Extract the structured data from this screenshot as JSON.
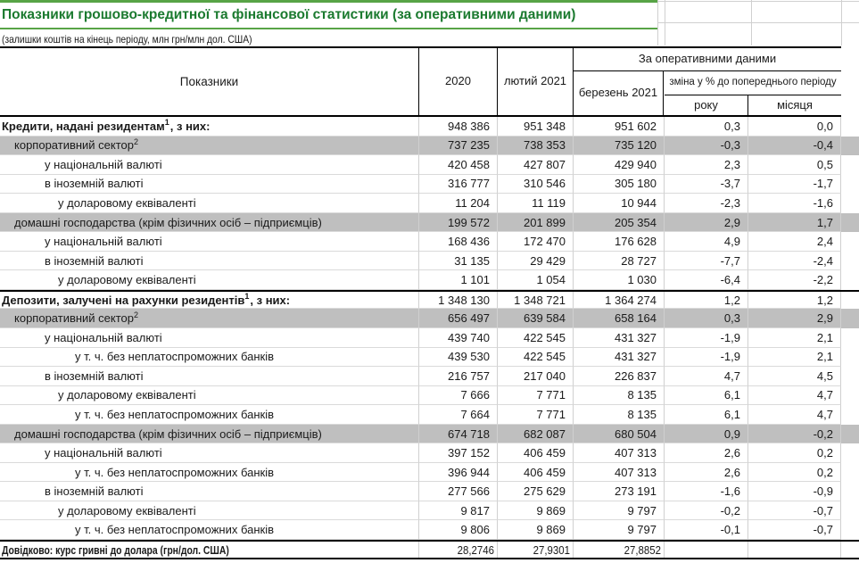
{
  "title": "Показники грошово-кредитної та фінансової статистики (за оперативними даними)",
  "subtitle": "(залишки коштів на кінець періоду, млн грн/млн дол. США)",
  "accent_colors": {
    "title_green": "#1b7a2f",
    "rule_green": "#58a446",
    "band_gray": "#bfbfbf"
  },
  "table": {
    "headers": {
      "indicators": "Показники",
      "col_2020": "2020",
      "col_feb": "лютий 2021",
      "operational_group": "За оперативними даними",
      "col_march": "березень 2021",
      "change_group": "зміна у % до попереднього періоду",
      "col_year": "року",
      "col_month": "місяця"
    },
    "rows": [
      {
        "label": "Кредити, надані резидентам",
        "sup": "1",
        "after": ", з них:",
        "indent": 0,
        "section": true,
        "shade": false,
        "rule_top": false,
        "values": [
          "948 386",
          "951 348",
          "951 602",
          "0,3",
          "0,0"
        ]
      },
      {
        "label": "корпоративний сектор",
        "sup": "2",
        "after": "",
        "indent": 1,
        "section": false,
        "shade": true,
        "rule_top": false,
        "values": [
          "737 235",
          "738 353",
          "735 120",
          "-0,3",
          "-0,4"
        ]
      },
      {
        "label": "у національній валюті",
        "sup": "",
        "after": "",
        "indent": 2,
        "section": false,
        "shade": false,
        "rule_top": false,
        "values": [
          "420 458",
          "427 807",
          "429 940",
          "2,3",
          "0,5"
        ]
      },
      {
        "label": "в іноземній валюті",
        "sup": "",
        "after": "",
        "indent": 2,
        "section": false,
        "shade": false,
        "rule_top": false,
        "values": [
          "316 777",
          "310 546",
          "305 180",
          "-3,7",
          "-1,7"
        ]
      },
      {
        "label": "у доларовому еквіваленті",
        "sup": "",
        "after": "",
        "indent": 3,
        "section": false,
        "shade": false,
        "rule_top": false,
        "values": [
          "11 204",
          "11 119",
          "10 944",
          "-2,3",
          "-1,6"
        ]
      },
      {
        "label": "домашні господарства (крім фізичних осіб – підприємців)",
        "sup": "",
        "after": "",
        "indent": 1,
        "section": false,
        "shade": true,
        "rule_top": false,
        "values": [
          "199 572",
          "201 899",
          "205 354",
          "2,9",
          "1,7"
        ]
      },
      {
        "label": "у національній валюті",
        "sup": "",
        "after": "",
        "indent": 2,
        "section": false,
        "shade": false,
        "rule_top": false,
        "values": [
          "168 436",
          "172 470",
          "176 628",
          "4,9",
          "2,4"
        ]
      },
      {
        "label": "в іноземній валюті",
        "sup": "",
        "after": "",
        "indent": 2,
        "section": false,
        "shade": false,
        "rule_top": false,
        "values": [
          "31 135",
          "29 429",
          "28 727",
          "-7,7",
          "-2,4"
        ]
      },
      {
        "label": "у доларовому еквіваленті",
        "sup": "",
        "after": "",
        "indent": 3,
        "section": false,
        "shade": false,
        "rule_top": false,
        "values": [
          "1 101",
          "1 054",
          "1 030",
          "-6,4",
          "-2,2"
        ]
      },
      {
        "label": "Депозити, залучені на рахунки резидентів",
        "sup": "1",
        "after": ", з них:",
        "indent": 0,
        "section": true,
        "shade": false,
        "rule_top": true,
        "values": [
          "1 348 130",
          "1 348 721",
          "1 364 274",
          "1,2",
          "1,2"
        ]
      },
      {
        "label": "корпоративний сектор",
        "sup": "2",
        "after": "",
        "indent": 1,
        "section": false,
        "shade": true,
        "rule_top": false,
        "values": [
          "656 497",
          "639 584",
          "658 164",
          "0,3",
          "2,9"
        ]
      },
      {
        "label": "у національній валюті",
        "sup": "",
        "after": "",
        "indent": 2,
        "section": false,
        "shade": false,
        "rule_top": false,
        "values": [
          "439 740",
          "422 545",
          "431 327",
          "-1,9",
          "2,1"
        ]
      },
      {
        "label": "у т. ч. без неплатоспроможних банків",
        "sup": "",
        "after": "",
        "indent": 4,
        "section": false,
        "shade": false,
        "rule_top": false,
        "values": [
          "439 530",
          "422 545",
          "431 327",
          "-1,9",
          "2,1"
        ]
      },
      {
        "label": "в іноземній валюті",
        "sup": "",
        "after": "",
        "indent": 2,
        "section": false,
        "shade": false,
        "rule_top": false,
        "values": [
          "216 757",
          "217 040",
          "226 837",
          "4,7",
          "4,5"
        ]
      },
      {
        "label": "у доларовому еквіваленті",
        "sup": "",
        "after": "",
        "indent": 3,
        "section": false,
        "shade": false,
        "rule_top": false,
        "values": [
          "7 666",
          "7 771",
          "8 135",
          "6,1",
          "4,7"
        ]
      },
      {
        "label": "у т. ч. без неплатоспроможних банків",
        "sup": "",
        "after": "",
        "indent": 4,
        "section": false,
        "shade": false,
        "rule_top": false,
        "values": [
          "7 664",
          "7 771",
          "8 135",
          "6,1",
          "4,7"
        ]
      },
      {
        "label": "домашні господарства (крім фізичних осіб – підприємців)",
        "sup": "",
        "after": "",
        "indent": 1,
        "section": false,
        "shade": true,
        "rule_top": false,
        "values": [
          "674 718",
          "682 087",
          "680 504",
          "0,9",
          "-0,2"
        ]
      },
      {
        "label": "у національній валюті",
        "sup": "",
        "after": "",
        "indent": 2,
        "section": false,
        "shade": false,
        "rule_top": false,
        "values": [
          "397 152",
          "406 459",
          "407 313",
          "2,6",
          "0,2"
        ]
      },
      {
        "label": "у т. ч. без неплатоспроможних банків",
        "sup": "",
        "after": "",
        "indent": 4,
        "section": false,
        "shade": false,
        "rule_top": false,
        "values": [
          "396 944",
          "406 459",
          "407 313",
          "2,6",
          "0,2"
        ]
      },
      {
        "label": "в іноземній валюті",
        "sup": "",
        "after": "",
        "indent": 2,
        "section": false,
        "shade": false,
        "rule_top": false,
        "values": [
          "277 566",
          "275 629",
          "273 191",
          "-1,6",
          "-0,9"
        ]
      },
      {
        "label": "у доларовому еквіваленті",
        "sup": "",
        "after": "",
        "indent": 3,
        "section": false,
        "shade": false,
        "rule_top": false,
        "values": [
          "9 817",
          "9 869",
          "9 797",
          "-0,2",
          "-0,7"
        ]
      },
      {
        "label": "у т. ч. без неплатоспроможних банків",
        "sup": "",
        "after": "",
        "indent": 4,
        "section": false,
        "shade": false,
        "rule_top": false,
        "values": [
          "9 806",
          "9 869",
          "9 797",
          "-0,1",
          "-0,7"
        ]
      }
    ],
    "footer": {
      "label": "Довідково: курс гривні до долара (грн/дол. США)",
      "values": [
        "28,2746",
        "27,9301",
        "27,8852",
        "",
        ""
      ]
    }
  }
}
